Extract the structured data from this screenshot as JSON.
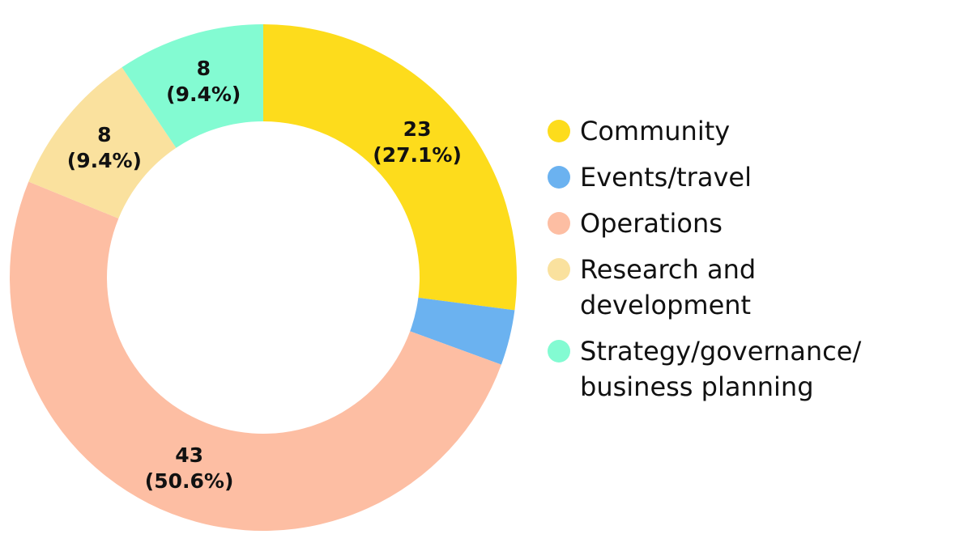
{
  "chart_data": {
    "type": "donut",
    "categories": [
      "Community",
      "Events/travel",
      "Operations",
      "Research and development",
      "Strategy/governance/ business planning"
    ],
    "values": [
      23,
      3,
      43,
      8,
      8
    ],
    "value_labels": [
      "23\n(27.1%)",
      null,
      "43\n(50.6%)",
      "8\n(9.4%)",
      "8\n(9.4%)"
    ],
    "colors": [
      "#fddc1c",
      "#6bb2f0",
      "#fdbea3",
      "#fae19e",
      "#83fbd2"
    ],
    "legend": "right"
  }
}
